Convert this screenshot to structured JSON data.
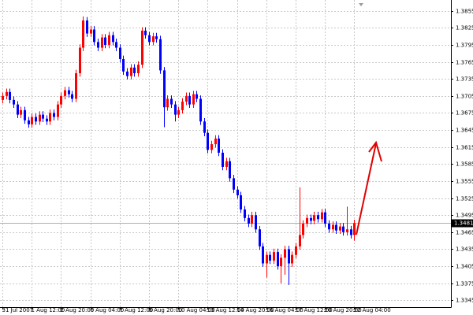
{
  "chart_data": {
    "type": "candlestick",
    "categories": [
      "31 Jul 2007",
      null,
      null,
      null,
      null,
      null,
      null,
      null,
      "1 Aug 12:00",
      null,
      null,
      null,
      null,
      null,
      null,
      null,
      "2 Aug 20:00",
      null,
      null,
      null,
      null,
      null,
      null,
      null,
      "6 Aug 04:00",
      null,
      null,
      null,
      null,
      null,
      null,
      null,
      "7 Aug 12:00",
      null,
      null,
      null,
      null,
      null,
      null,
      null,
      "8 Aug 20:00",
      null,
      null,
      null,
      null,
      null,
      null,
      null,
      "10 Aug 04:00",
      null,
      null,
      null,
      null,
      null,
      null,
      null,
      "13 Aug 12:00",
      null,
      null,
      null,
      null,
      null,
      null,
      null,
      "14 Aug 20:00",
      null,
      null,
      null,
      null,
      null,
      null,
      null,
      "16 Aug 04:00",
      null,
      null,
      null,
      null,
      null,
      null,
      null,
      "17 Aug 12:00",
      null,
      null,
      null,
      null,
      null,
      null,
      null,
      "20 Aug 20:00",
      null,
      null,
      null,
      null,
      null,
      null,
      null,
      "22 Aug 04:00"
    ],
    "open": [
      1.3698,
      1.3705,
      1.3712,
      1.3698,
      1.369,
      1.3672,
      1.368,
      1.3662,
      1.3655,
      1.3668,
      1.366,
      1.3672,
      1.3665,
      1.366,
      1.3675,
      1.3668,
      1.369,
      1.3705,
      1.3715,
      1.3708,
      1.37,
      1.3745,
      1.379,
      1.3838,
      1.3815,
      1.3822,
      1.38,
      1.379,
      1.3808,
      1.3795,
      1.3812,
      1.38,
      1.379,
      1.377,
      1.3748,
      1.374,
      1.3755,
      1.3745,
      1.376,
      1.382,
      1.3812,
      1.38,
      1.381,
      1.3805,
      1.375,
      1.3685,
      1.37,
      1.369,
      1.3672,
      1.368,
      1.3695,
      1.3705,
      1.369,
      1.3708,
      1.37,
      1.366,
      1.364,
      1.361,
      1.362,
      1.363,
      1.3605,
      1.358,
      1.359,
      1.356,
      1.354,
      1.353,
      1.3505,
      1.349,
      1.348,
      1.3495,
      1.347,
      1.344,
      1.341,
      1.3425,
      1.3415,
      1.343,
      1.3405,
      1.342,
      1.3435,
      1.341,
      1.3425,
      1.344,
      1.346,
      1.348,
      1.349,
      1.3485,
      1.3495,
      1.3488,
      1.35,
      1.348,
      1.347,
      1.3478,
      1.3468,
      1.3475,
      1.3465,
      1.347,
      1.346
    ],
    "high": [
      1.3711,
      1.3718,
      1.3718,
      1.3704,
      1.3696,
      1.3686,
      1.3686,
      1.3668,
      1.3674,
      1.3674,
      1.3678,
      1.3678,
      1.3671,
      1.3681,
      1.3681,
      1.3696,
      1.3711,
      1.3721,
      1.3721,
      1.3714,
      1.3751,
      1.3796,
      1.3845,
      1.3844,
      1.3828,
      1.3828,
      1.3806,
      1.3814,
      1.3814,
      1.3818,
      1.3818,
      1.3806,
      1.3796,
      1.3776,
      1.3754,
      1.3761,
      1.3761,
      1.3766,
      1.3826,
      1.3826,
      1.3818,
      1.3816,
      1.3816,
      1.3811,
      1.3756,
      1.3706,
      1.3706,
      1.3696,
      1.3686,
      1.3701,
      1.3711,
      1.3711,
      1.3714,
      1.3714,
      1.3706,
      1.3666,
      1.3646,
      1.3626,
      1.3636,
      1.3636,
      1.3611,
      1.3596,
      1.3596,
      1.3566,
      1.3546,
      1.3536,
      1.3511,
      1.3496,
      1.3501,
      1.3501,
      1.3476,
      1.3446,
      1.3431,
      1.3431,
      1.3436,
      1.3436,
      1.3426,
      1.3441,
      1.3441,
      1.3431,
      1.3446,
      1.3544,
      1.3486,
      1.3496,
      1.3496,
      1.3501,
      1.3501,
      1.3506,
      1.3506,
      1.3486,
      1.3484,
      1.3484,
      1.3481,
      1.3481,
      1.351,
      1.3476,
      1.3487
    ],
    "low": [
      1.3692,
      1.3699,
      1.3692,
      1.3684,
      1.3666,
      1.3666,
      1.3656,
      1.3649,
      1.3649,
      1.3654,
      1.3654,
      1.3659,
      1.3654,
      1.3654,
      1.3662,
      1.3662,
      1.3684,
      1.3699,
      1.3702,
      1.3694,
      1.3694,
      1.3739,
      1.3784,
      1.3809,
      1.3809,
      1.3794,
      1.3784,
      1.3784,
      1.3789,
      1.3789,
      1.3794,
      1.3784,
      1.3764,
      1.3742,
      1.3734,
      1.3734,
      1.3739,
      1.3739,
      1.3754,
      1.3806,
      1.3794,
      1.3794,
      1.3799,
      1.3744,
      1.365,
      1.3679,
      1.3684,
      1.366,
      1.3666,
      1.3674,
      1.3689,
      1.3684,
      1.3684,
      1.3694,
      1.3654,
      1.3634,
      1.3604,
      1.3604,
      1.3614,
      1.3599,
      1.3574,
      1.3574,
      1.3554,
      1.3534,
      1.3524,
      1.3499,
      1.3484,
      1.3474,
      1.3474,
      1.3464,
      1.3434,
      1.3404,
      1.3385,
      1.3409,
      1.3409,
      1.3399,
      1.3375,
      1.339,
      1.3372,
      1.3404,
      1.3419,
      1.3434,
      1.3454,
      1.3474,
      1.3479,
      1.3479,
      1.3482,
      1.3482,
      1.3474,
      1.3464,
      1.3464,
      1.3462,
      1.3462,
      1.3459,
      1.3459,
      1.3454,
      1.345
    ],
    "close": [
      1.3705,
      1.3712,
      1.3698,
      1.369,
      1.3672,
      1.368,
      1.3662,
      1.3655,
      1.3668,
      1.366,
      1.3672,
      1.3665,
      1.366,
      1.3675,
      1.3668,
      1.369,
      1.3705,
      1.3715,
      1.3708,
      1.37,
      1.3745,
      1.379,
      1.3838,
      1.3815,
      1.3822,
      1.38,
      1.379,
      1.3808,
      1.3795,
      1.3812,
      1.38,
      1.379,
      1.377,
      1.3748,
      1.374,
      1.3755,
      1.3745,
      1.376,
      1.382,
      1.3812,
      1.38,
      1.381,
      1.3805,
      1.375,
      1.3685,
      1.37,
      1.369,
      1.3672,
      1.368,
      1.3695,
      1.3705,
      1.369,
      1.3708,
      1.37,
      1.366,
      1.364,
      1.361,
      1.362,
      1.363,
      1.3605,
      1.358,
      1.359,
      1.356,
      1.354,
      1.353,
      1.3505,
      1.349,
      1.348,
      1.3495,
      1.347,
      1.344,
      1.341,
      1.3425,
      1.3415,
      1.343,
      1.3405,
      1.342,
      1.3435,
      1.341,
      1.3425,
      1.344,
      1.346,
      1.348,
      1.349,
      1.3485,
      1.3495,
      1.3488,
      1.35,
      1.348,
      1.347,
      1.3478,
      1.3468,
      1.3475,
      1.3465,
      1.347,
      1.346,
      1.3481
    ],
    "up_color": "#ff0000",
    "down_color": "#0000ff",
    "current_price": 1.3481,
    "ylim": [
      1.3333,
      1.3874
    ],
    "yticks": [
      1.3345,
      1.3375,
      1.3405,
      1.3435,
      1.3465,
      1.3495,
      1.3525,
      1.3555,
      1.3585,
      1.3615,
      1.3645,
      1.3675,
      1.3705,
      1.3735,
      1.3765,
      1.3795,
      1.3825,
      1.3855
    ],
    "grid": true
  }
}
